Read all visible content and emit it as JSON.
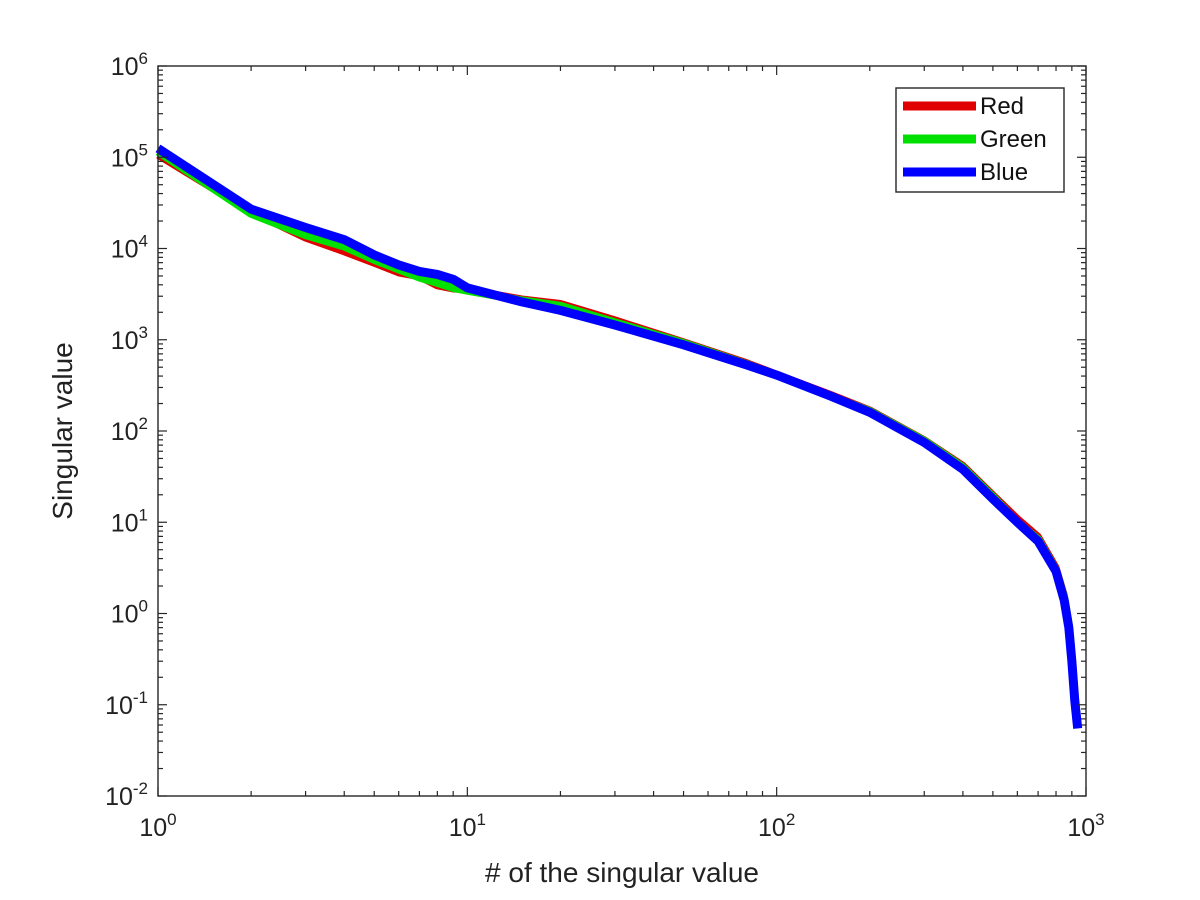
{
  "chart_data": {
    "type": "line",
    "xscale": "log",
    "yscale": "log",
    "xlim": [
      1,
      1000
    ],
    "ylim": [
      0.01,
      1000000
    ],
    "xlabel": "# of the singular value",
    "ylabel": "Singular value",
    "grid": false,
    "legend_position": "top-right",
    "x_ticks": [
      {
        "base": "10",
        "exp": "0"
      },
      {
        "base": "10",
        "exp": "1"
      },
      {
        "base": "10",
        "exp": "2"
      },
      {
        "base": "10",
        "exp": "3"
      }
    ],
    "y_ticks": [
      {
        "base": "10",
        "exp": "-2"
      },
      {
        "base": "10",
        "exp": "-1"
      },
      {
        "base": "10",
        "exp": "0"
      },
      {
        "base": "10",
        "exp": "1"
      },
      {
        "base": "10",
        "exp": "2"
      },
      {
        "base": "10",
        "exp": "3"
      },
      {
        "base": "10",
        "exp": "4"
      },
      {
        "base": "10",
        "exp": "5"
      },
      {
        "base": "10",
        "exp": "6"
      }
    ],
    "series": [
      {
        "name": "Red",
        "color": "#e00000",
        "x": [
          1,
          2,
          3,
          4,
          5,
          6,
          7,
          8,
          9,
          10,
          15,
          20,
          30,
          50,
          80,
          100,
          150,
          200,
          300,
          400,
          500,
          600,
          700,
          800,
          850,
          880,
          900,
          920,
          940
        ],
        "y": [
          105000,
          25000,
          13000,
          9200,
          6900,
          5400,
          4900,
          3900,
          3600,
          3550,
          2800,
          2500,
          1650,
          950,
          560,
          420,
          250,
          170,
          80,
          42,
          20,
          11,
          7,
          3.2,
          1.6,
          0.8,
          0.35,
          0.13,
          0.06
        ]
      },
      {
        "name": "Green",
        "color": "#00e000",
        "x": [
          1,
          2,
          3,
          4,
          5,
          6,
          7,
          8,
          9,
          10,
          15,
          20,
          30,
          50,
          80,
          100,
          150,
          200,
          300,
          400,
          500,
          600,
          700,
          800,
          850,
          880,
          900,
          920,
          940
        ],
        "y": [
          115000,
          24000,
          14000,
          10500,
          7500,
          5900,
          4800,
          4200,
          3700,
          3450,
          2700,
          2350,
          1550,
          920,
          540,
          410,
          240,
          165,
          78,
          40,
          19,
          10,
          6.5,
          3.0,
          1.5,
          0.75,
          0.33,
          0.12,
          0.06
        ]
      },
      {
        "name": "Blue",
        "color": "#0000ff",
        "x": [
          1,
          2,
          3,
          4,
          5,
          6,
          7,
          8,
          9,
          10,
          15,
          20,
          30,
          50,
          80,
          100,
          150,
          200,
          300,
          400,
          500,
          600,
          700,
          800,
          850,
          880,
          900,
          920,
          940
        ],
        "y": [
          125000,
          27000,
          17000,
          12500,
          8500,
          6600,
          5600,
          5200,
          4600,
          3700,
          2600,
          2100,
          1450,
          880,
          530,
          410,
          240,
          160,
          75,
          38,
          18,
          10,
          6.2,
          2.9,
          1.4,
          0.7,
          0.3,
          0.11,
          0.055
        ]
      }
    ]
  }
}
